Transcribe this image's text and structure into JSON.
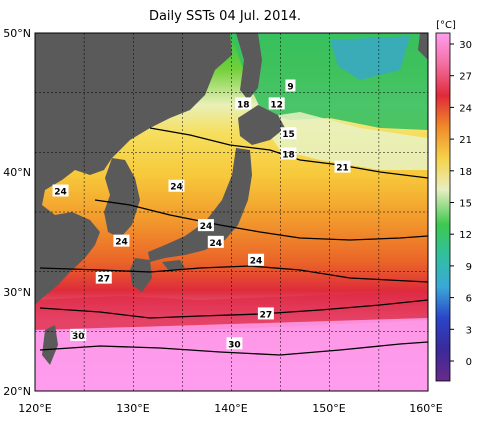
{
  "title": "Daily SSTs 04 Jul. 2014.",
  "map": {
    "lon_labels": [
      "120°E",
      "130°E",
      "140°E",
      "150°E",
      "160°E"
    ],
    "lat_labels": [
      "50°N",
      "40°N",
      "30°N",
      "20°N"
    ],
    "contour_labels": [
      {
        "text": "9",
        "lon": 146.0,
        "lat": 45.6
      },
      {
        "text": "12",
        "lon": 144.6,
        "lat": 44.1
      },
      {
        "text": "18",
        "lon": 141.2,
        "lat": 44.1
      },
      {
        "text": "15",
        "lon": 145.8,
        "lat": 41.6
      },
      {
        "text": "18",
        "lon": 145.8,
        "lat": 39.9
      },
      {
        "text": "21",
        "lon": 151.3,
        "lat": 38.8
      },
      {
        "text": "24",
        "lon": 122.6,
        "lat": 36.8
      },
      {
        "text": "24",
        "lon": 134.4,
        "lat": 37.2
      },
      {
        "text": "24",
        "lon": 137.4,
        "lat": 33.9
      },
      {
        "text": "24",
        "lon": 128.8,
        "lat": 32.6
      },
      {
        "text": "24",
        "lon": 138.4,
        "lat": 32.5
      },
      {
        "text": "24",
        "lon": 142.5,
        "lat": 31.0
      },
      {
        "text": "27",
        "lon": 127.0,
        "lat": 29.5
      },
      {
        "text": "27",
        "lon": 143.5,
        "lat": 26.5
      },
      {
        "text": "30",
        "lon": 124.4,
        "lat": 24.7
      },
      {
        "text": "30",
        "lon": 140.3,
        "lat": 24.0
      }
    ]
  },
  "colorbar": {
    "unit": "[°C]",
    "ticks": [
      "30",
      "27",
      "24",
      "21",
      "18",
      "15",
      "12",
      "9",
      "6",
      "3",
      "0"
    ],
    "colors": [
      "#ff9cf2",
      "#f25a90",
      "#e02a3a",
      "#f08a2a",
      "#f6d24a",
      "#eef0c0",
      "#3ec850",
      "#39c0a0",
      "#3a9ad8",
      "#2a44c8",
      "#6a2a8a"
    ]
  },
  "colors": {
    "land": "#5a5a5a",
    "grid": "#000000",
    "frame": "#000000"
  }
}
